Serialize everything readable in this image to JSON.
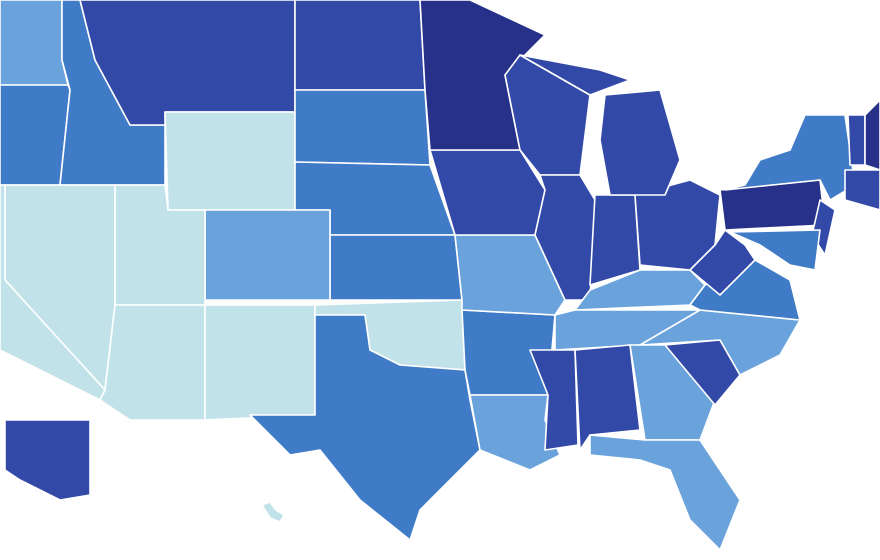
{
  "map": {
    "regions": [
      {
        "color": "#6aa3dc"
      },
      {
        "color": "#3f7bc6"
      },
      {
        "color": "#3f7bc6"
      },
      {
        "color": "#3349a8"
      },
      {
        "color": "#c2e2ea"
      },
      {
        "color": "#3349a8"
      },
      {
        "color": "#3f7bc6"
      },
      {
        "color": "#3f7bc6"
      },
      {
        "color": "#3f7bc6"
      },
      {
        "color": "#6aa3dc"
      },
      {
        "color": "#c2e2ea"
      },
      {
        "color": "#c2e2ea"
      },
      {
        "color": "#c2e2ea"
      },
      {
        "color": "#c2e2ea"
      },
      {
        "color": "#c2e2ea"
      },
      {
        "color": "#c2e2ea"
      },
      {
        "color": "#3f7bc6"
      },
      {
        "color": "#3f7bc6"
      },
      {
        "color": "#6aa3dc"
      },
      {
        "color": "#6aa3dc"
      },
      {
        "color": "#3349a8"
      },
      {
        "color": "#27318a"
      },
      {
        "color": "#3349a8"
      },
      {
        "color": "#3349a8"
      },
      {
        "color": "#3349a8"
      },
      {
        "color": "#3349a8"
      },
      {
        "color": "#3349a8"
      },
      {
        "color": "#3349a8"
      },
      {
        "color": "#6aa3dc"
      },
      {
        "color": "#6aa3dc"
      },
      {
        "color": "#3349a8"
      },
      {
        "color": "#3349a8"
      },
      {
        "color": "#6aa3dc"
      },
      {
        "color": "#6aa3dc"
      },
      {
        "color": "#3349a8"
      },
      {
        "color": "#6aa3dc"
      },
      {
        "color": "#3f7bc6"
      },
      {
        "color": "#3349a8"
      },
      {
        "color": "#27318a"
      },
      {
        "color": "#3f7bc6"
      },
      {
        "color": "#3349a8"
      },
      {
        "color": "#3f7bc6"
      },
      {
        "color": "#3349a8"
      },
      {
        "color": "#27318a"
      },
      {
        "color": "#3349a8"
      },
      {
        "color": "#3349a8"
      },
      {
        "color": "#c2e2ea"
      }
    ]
  }
}
